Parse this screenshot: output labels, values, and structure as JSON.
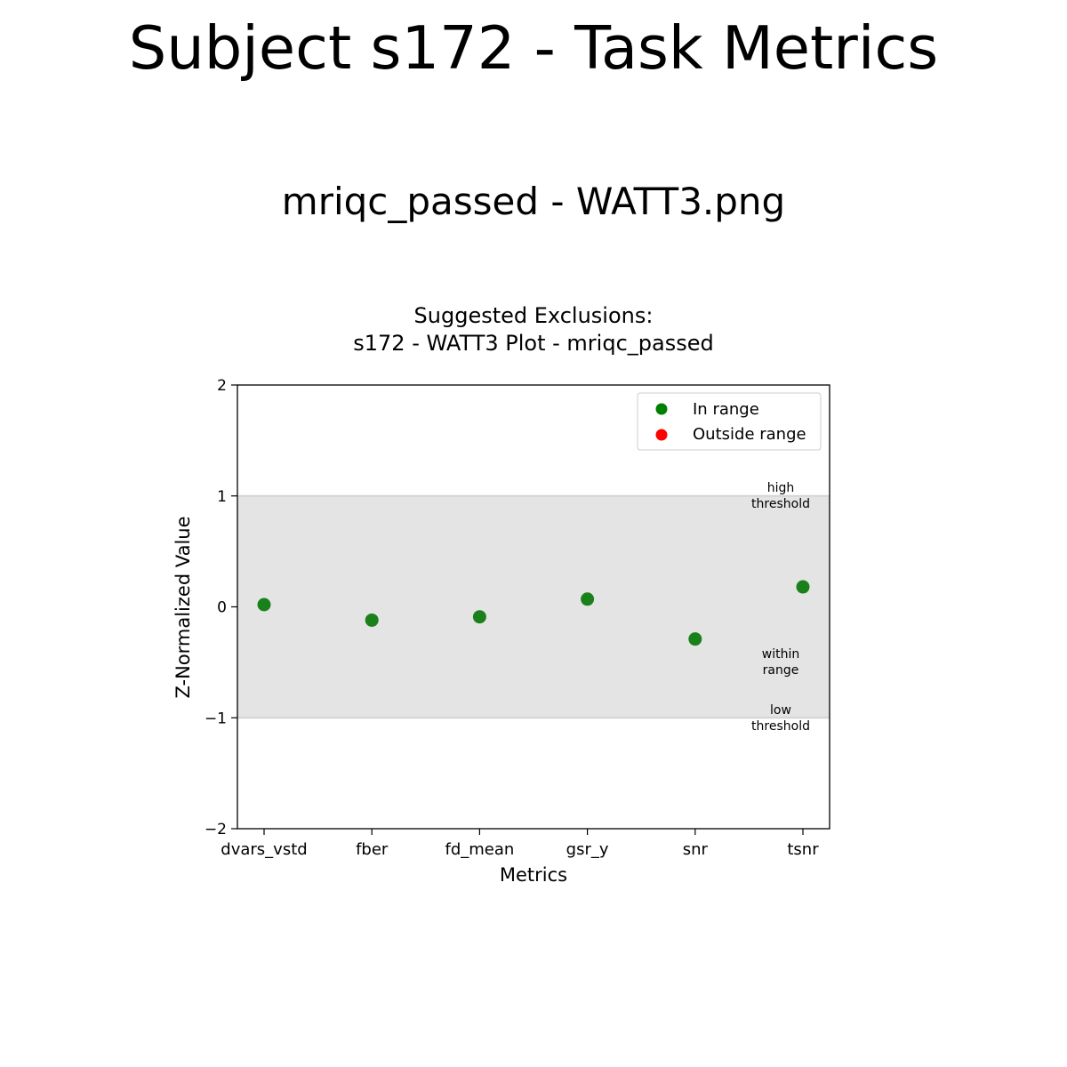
{
  "page": {
    "title": "Subject s172 - Task Metrics",
    "subtitle": "mriqc_passed - WATT3.png"
  },
  "chart_data": {
    "type": "scatter",
    "title_lines": [
      "Suggested Exclusions:",
      "s172 - WATT3 Plot - mriqc_passed"
    ],
    "xlabel": "Metrics",
    "ylabel": "Z-Normalized Value",
    "categories": [
      "dvars_vstd",
      "fber",
      "fd_mean",
      "gsr_y",
      "snr",
      "tsnr"
    ],
    "values": [
      0.02,
      -0.12,
      -0.09,
      0.07,
      -0.29,
      0.18
    ],
    "ylim": [
      -2,
      2
    ],
    "yticks": [
      2,
      1,
      0,
      -1,
      -2
    ],
    "ytick_labels": [
      "2",
      "1",
      "0",
      "−1",
      "−2"
    ],
    "range_band": [
      -1,
      1
    ],
    "annotations": {
      "high": [
        "high",
        "threshold"
      ],
      "within": [
        "within",
        "range"
      ],
      "low": [
        "low",
        "threshold"
      ]
    },
    "legend": {
      "position": "top-right",
      "entries": [
        {
          "label": "In range",
          "color": "#008000"
        },
        {
          "label": "Outside range",
          "color": "#ff0000"
        }
      ]
    },
    "colors": {
      "in_range": "#1a801a",
      "band": "#e4e4e4"
    },
    "grid": false
  }
}
